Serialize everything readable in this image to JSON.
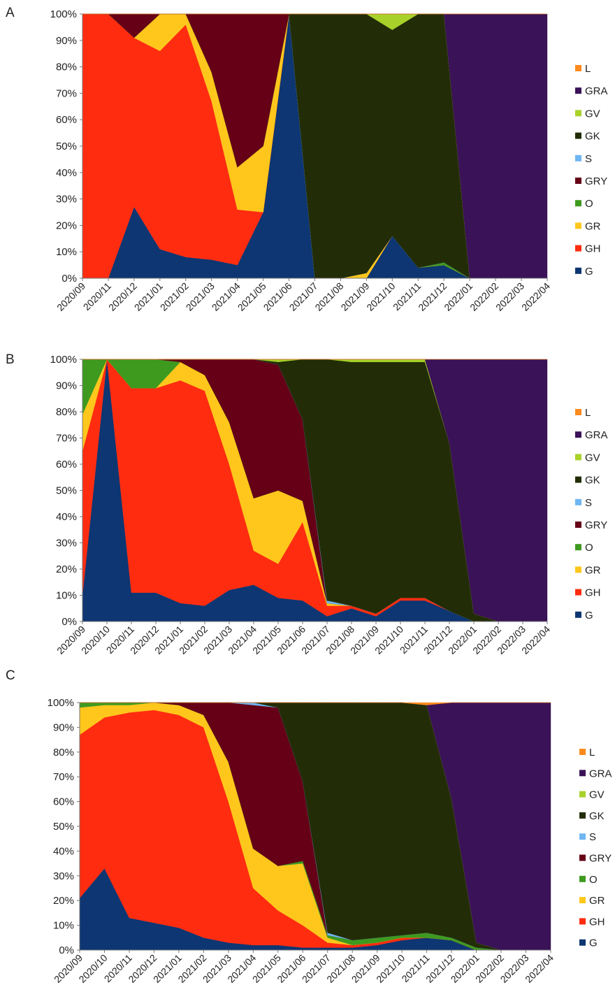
{
  "colors": {
    "G": "#0d3672",
    "GH": "#ff2c10",
    "GR": "#ffc71c",
    "O": "#3e9a1f",
    "GRY": "#650017",
    "S": "#6fb6f2",
    "GK": "#222d07",
    "GV": "#a8d22a",
    "GRA": "#3a1257",
    "L": "#ff8a1d"
  },
  "chart_data": [
    {
      "panel": "A",
      "type": "area",
      "stacked": "percent",
      "x": [
        "2020/09",
        "2020/11",
        "2020/12",
        "2021/01",
        "2021/02",
        "2021/03",
        "2021/04",
        "2021/05",
        "2021/06",
        "2021/07",
        "2021/08",
        "2021/09",
        "2021/10",
        "2021/11",
        "2021/12",
        "2022/01",
        "2022/02",
        "2022/03",
        "2022/04"
      ],
      "yticks": [
        "0%",
        "10%",
        "20%",
        "30%",
        "40%",
        "50%",
        "60%",
        "70%",
        "80%",
        "90%",
        "100%"
      ],
      "ylim": [
        0,
        100
      ],
      "legend": [
        "L",
        "GRA",
        "GV",
        "GK",
        "S",
        "GRY",
        "O",
        "GR",
        "GH",
        "G"
      ],
      "legend_position": "right",
      "series": [
        {
          "name": "G",
          "values": [
            0,
            0,
            27,
            11,
            8,
            7,
            5,
            25,
            100,
            0,
            0,
            0,
            16,
            4,
            5,
            0,
            0,
            0,
            0
          ]
        },
        {
          "name": "GH",
          "values": [
            100,
            100,
            64,
            75,
            88,
            60,
            21,
            0,
            0,
            0,
            0,
            0,
            0,
            0,
            0,
            0,
            0,
            0,
            0
          ]
        },
        {
          "name": "GR",
          "values": [
            0,
            0,
            0,
            14,
            4,
            11,
            16,
            25,
            0,
            0,
            0,
            2,
            0,
            0,
            0,
            0,
            0,
            0,
            0
          ]
        },
        {
          "name": "O",
          "values": [
            0,
            0,
            0,
            0,
            0,
            0,
            0,
            0,
            0,
            0,
            0,
            0,
            0,
            0,
            1,
            0,
            0,
            0,
            0
          ]
        },
        {
          "name": "GRY",
          "values": [
            0,
            0,
            9,
            0,
            0,
            22,
            58,
            50,
            0,
            0,
            0,
            0,
            0,
            0,
            0,
            0,
            0,
            0,
            0
          ]
        },
        {
          "name": "S",
          "values": [
            0,
            0,
            0,
            0,
            0,
            0,
            0,
            0,
            0,
            0,
            0,
            0,
            0,
            0,
            0,
            0,
            0,
            0,
            0
          ]
        },
        {
          "name": "GK",
          "values": [
            0,
            0,
            0,
            0,
            0,
            0,
            0,
            0,
            0,
            100,
            100,
            98,
            78,
            96,
            94,
            0,
            0,
            0,
            0
          ]
        },
        {
          "name": "GV",
          "values": [
            0,
            0,
            0,
            0,
            0,
            0,
            0,
            0,
            0,
            0,
            0,
            0,
            6,
            0,
            0,
            0,
            0,
            0,
            0
          ]
        },
        {
          "name": "GRA",
          "values": [
            0,
            0,
            0,
            0,
            0,
            0,
            0,
            0,
            0,
            0,
            0,
            0,
            0,
            0,
            0,
            100,
            100,
            100,
            100
          ]
        },
        {
          "name": "L",
          "values": [
            0,
            0,
            0,
            0,
            0,
            0,
            0,
            0,
            0,
            0,
            0,
            0,
            0,
            0,
            0,
            0,
            0,
            0,
            0
          ]
        }
      ]
    },
    {
      "panel": "B",
      "type": "area",
      "stacked": "percent",
      "x": [
        "2020/09",
        "2020/10",
        "2020/11",
        "2020/12",
        "2021/01",
        "2021/02",
        "2021/03",
        "2021/04",
        "2021/05",
        "2021/06",
        "2021/07",
        "2021/08",
        "2021/09",
        "2021/10",
        "2021/11",
        "2021/12",
        "2022/01",
        "2022/02",
        "2022/03",
        "2022/04"
      ],
      "yticks": [
        "0%",
        "10%",
        "20%",
        "30%",
        "40%",
        "50%",
        "60%",
        "70%",
        "80%",
        "90%",
        "100%"
      ],
      "ylim": [
        0,
        100
      ],
      "legend": [
        "L",
        "GRA",
        "GV",
        "GK",
        "S",
        "GRY",
        "O",
        "GR",
        "GH",
        "G"
      ],
      "legend_position": "right",
      "series": [
        {
          "name": "G",
          "values": [
            10,
            100,
            11,
            11,
            7,
            6,
            12,
            14,
            9,
            8,
            2,
            5,
            2,
            8,
            8,
            4,
            0,
            0,
            0,
            0
          ]
        },
        {
          "name": "GH",
          "values": [
            55,
            0,
            78,
            78,
            85,
            82,
            48,
            13,
            13,
            30,
            4,
            1,
            1,
            1,
            1,
            0,
            0,
            0,
            0,
            0
          ]
        },
        {
          "name": "GR",
          "values": [
            14,
            0,
            0,
            0,
            7,
            6,
            16,
            20,
            28,
            8,
            1,
            0,
            0,
            0,
            0,
            0,
            0,
            0,
            0,
            0
          ]
        },
        {
          "name": "O",
          "values": [
            21,
            0,
            11,
            11,
            0,
            0,
            0,
            0,
            0,
            0,
            0,
            0,
            0,
            0,
            0,
            0,
            0,
            0,
            0,
            0
          ]
        },
        {
          "name": "GRY",
          "values": [
            0,
            0,
            0,
            0,
            1,
            6,
            24,
            53,
            48,
            31,
            0,
            0,
            0,
            0,
            0,
            0,
            0,
            0,
            0,
            0
          ]
        },
        {
          "name": "S",
          "values": [
            0,
            0,
            0,
            0,
            0,
            0,
            0,
            0,
            0,
            0,
            1,
            0,
            0,
            0,
            0,
            0,
            0,
            0,
            0,
            0
          ]
        },
        {
          "name": "GK",
          "values": [
            0,
            0,
            0,
            0,
            0,
            0,
            0,
            0,
            1,
            23,
            92,
            93,
            96,
            90,
            90,
            64,
            3,
            0,
            0,
            0
          ]
        },
        {
          "name": "GV",
          "values": [
            0,
            0,
            0,
            0,
            0,
            0,
            0,
            0,
            1,
            0,
            0,
            1,
            1,
            1,
            1,
            0,
            0,
            0,
            0,
            0
          ]
        },
        {
          "name": "GRA",
          "values": [
            0,
            0,
            0,
            0,
            0,
            0,
            0,
            0,
            0,
            0,
            0,
            0,
            0,
            0,
            0,
            32,
            97,
            100,
            100,
            100
          ]
        },
        {
          "name": "L",
          "values": [
            0,
            0,
            0,
            0,
            0,
            0,
            0,
            0,
            0,
            0,
            0,
            0,
            0,
            0,
            0,
            0,
            0,
            0,
            0,
            0
          ]
        }
      ]
    },
    {
      "panel": "C",
      "type": "area",
      "stacked": "percent",
      "x": [
        "2020/09",
        "2020/10",
        "2020/11",
        "2020/12",
        "2021/01",
        "2021/02",
        "2021/03",
        "2021/04",
        "2021/05",
        "2021/06",
        "2021/07",
        "2021/08",
        "2021/09",
        "2021/10",
        "2021/11",
        "2021/12",
        "2022/01",
        "2022/02",
        "2022/03",
        "2022/04"
      ],
      "yticks": [
        "0%",
        "10%",
        "20%",
        "30%",
        "40%",
        "50%",
        "60%",
        "70%",
        "80%",
        "90%",
        "100%"
      ],
      "ylim": [
        0,
        100
      ],
      "legend": [
        "L",
        "GRA",
        "GV",
        "GK",
        "S",
        "GRY",
        "O",
        "GR",
        "GH",
        "G"
      ],
      "legend_position": "right",
      "series": [
        {
          "name": "G",
          "values": [
            21,
            33,
            13,
            11,
            9,
            5,
            3,
            2,
            2,
            1,
            1,
            1,
            2,
            4,
            5,
            4,
            0,
            0,
            0,
            0
          ]
        },
        {
          "name": "GH",
          "values": [
            66,
            61,
            83,
            86,
            86,
            85,
            57,
            23,
            14,
            9,
            2,
            1,
            1,
            1,
            0,
            0,
            0,
            0,
            0,
            0
          ]
        },
        {
          "name": "GR",
          "values": [
            11,
            5,
            3,
            3,
            4,
            5,
            16,
            16,
            18,
            25,
            2,
            0,
            0,
            0,
            0,
            0,
            0,
            0,
            0,
            0
          ]
        },
        {
          "name": "O",
          "values": [
            2,
            1,
            1,
            0,
            0,
            0,
            0,
            0,
            0,
            1,
            1,
            2,
            2,
            1,
            2,
            1,
            1,
            0,
            0,
            0
          ]
        },
        {
          "name": "GRY",
          "values": [
            0,
            0,
            0,
            0,
            1,
            5,
            24,
            58,
            64,
            32,
            0,
            0,
            0,
            0,
            0,
            0,
            0,
            0,
            0,
            0
          ]
        },
        {
          "name": "S",
          "values": [
            0,
            0,
            0,
            0,
            0,
            0,
            0,
            1,
            0,
            0,
            1,
            0,
            0,
            0,
            0,
            0,
            0,
            0,
            0,
            0
          ]
        },
        {
          "name": "GK",
          "values": [
            0,
            0,
            0,
            0,
            0,
            0,
            0,
            0,
            2,
            32,
            93,
            96,
            95,
            94,
            92,
            56,
            2,
            0,
            0,
            0
          ]
        },
        {
          "name": "GV",
          "values": [
            0,
            0,
            0,
            0,
            0,
            0,
            0,
            0,
            0,
            0,
            0,
            0,
            0,
            0,
            0,
            0,
            0,
            0,
            0,
            0
          ]
        },
        {
          "name": "GRA",
          "values": [
            0,
            0,
            0,
            0,
            0,
            0,
            0,
            0,
            0,
            0,
            0,
            0,
            0,
            0,
            0,
            39,
            97,
            100,
            100,
            100
          ]
        },
        {
          "name": "L",
          "values": [
            0,
            0,
            0,
            0,
            0,
            0,
            0,
            0,
            0,
            0,
            0,
            0,
            0,
            0,
            1,
            0,
            0,
            0,
            0,
            0
          ]
        }
      ]
    }
  ]
}
